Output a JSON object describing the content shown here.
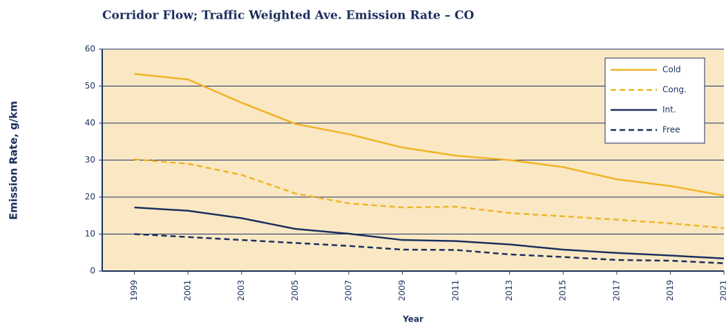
{
  "chart_data": {
    "type": "line",
    "title": "Corridor Flow; Traffic Weighted Ave. Emission Rate – CO",
    "xlabel": "Year",
    "ylabel": "Emission Rate, g/km",
    "x": [
      1999,
      2001,
      2003,
      2005,
      2007,
      2009,
      2011,
      2013,
      2015,
      2017,
      2019,
      2021
    ],
    "xlim": [
      1997.8,
      2021
    ],
    "xticks": [
      1999,
      2001,
      2003,
      2005,
      2007,
      2009,
      2011,
      2013,
      2015,
      2017,
      2019,
      2021
    ],
    "ylim": [
      0,
      60
    ],
    "yticks": [
      0,
      10,
      20,
      30,
      40,
      50,
      60
    ],
    "grid": true,
    "legend": "upper right",
    "series": [
      {
        "name": "Cold",
        "color": "#f0b323",
        "dashed": false,
        "values": [
          53.3,
          51.8,
          45.5,
          39.8,
          37,
          33.4,
          31.2,
          30,
          28.1,
          24.8,
          23,
          20.4
        ]
      },
      {
        "name": "Cong.",
        "color": "#f0b323",
        "dashed": true,
        "values": [
          30.2,
          29,
          26,
          21,
          18.3,
          17.2,
          17.4,
          15.7,
          14.8,
          13.9,
          12.9,
          11.6
        ]
      },
      {
        "name": "Int.",
        "color": "#1b2f5e",
        "dashed": false,
        "values": [
          17.2,
          16.3,
          14.3,
          11.4,
          10.1,
          8.4,
          8.1,
          7.2,
          5.8,
          4.9,
          4.2,
          3.4
        ]
      },
      {
        "name": "Free",
        "color": "#1b2f5e",
        "dashed": true,
        "values": [
          10,
          9.2,
          8.4,
          7.6,
          6.8,
          5.8,
          5.7,
          4.5,
          3.8,
          3.0,
          2.8,
          2.1
        ]
      }
    ]
  }
}
